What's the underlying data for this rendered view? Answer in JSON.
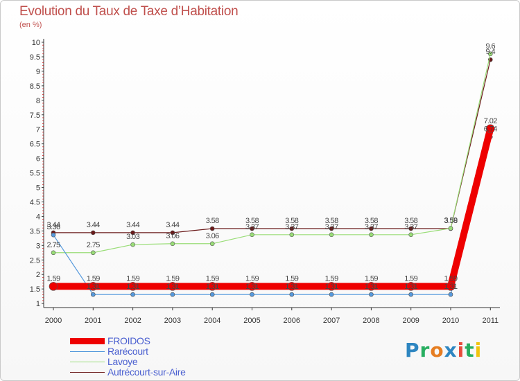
{
  "chart_data": {
    "type": "line",
    "title": "Evolution du Taux de Taxe d’Habitation",
    "subtitle": "(en %)",
    "ylim": [
      0.9,
      10
    ],
    "yticks": [
      1,
      1.5,
      2,
      2.5,
      3,
      3.5,
      4,
      4.5,
      5,
      5.5,
      6,
      6.5,
      7,
      7.5,
      8,
      8.5,
      9,
      9.5,
      10
    ],
    "ytick_labels": [
      "1",
      "1.5",
      "2",
      "2.5",
      "3",
      "3.5",
      "4",
      "4.5",
      "5",
      "5.5",
      "6",
      "6.5",
      "7",
      "7.5",
      "8",
      "8.5",
      "9",
      "9.5",
      "10"
    ],
    "categories": [
      "2000",
      "2001",
      "2002",
      "2003",
      "2004",
      "2005",
      "2006",
      "2007",
      "2008",
      "2009",
      "2010",
      "2011"
    ],
    "series": [
      {
        "name": "Autrécourt-sur-Aire",
        "color": "#6b1a1a",
        "values": [
          3.44,
          3.44,
          3.44,
          3.44,
          3.58,
          3.58,
          3.58,
          3.58,
          3.58,
          3.58,
          3.58,
          9.4
        ],
        "labels": [
          "3.44",
          "3.44",
          "3.44",
          "3.44",
          "3.58",
          "3.58",
          "3.58",
          "3.58",
          "3.58",
          "3.58",
          "3.58",
          "9.4"
        ]
      },
      {
        "name": "Lavoye",
        "color": "#99dd77",
        "values": [
          2.75,
          2.75,
          3.03,
          3.06,
          3.06,
          3.37,
          3.37,
          3.37,
          3.37,
          3.37,
          3.59,
          9.6
        ],
        "labels": [
          "2.75",
          "2.75",
          "3.03",
          "3.06",
          "3.06",
          "3.37",
          "3.37",
          "3.37",
          "3.37",
          "3.37",
          "3.59",
          "9.6"
        ]
      },
      {
        "name": "Rarécourt",
        "color": "#5599dd",
        "values": [
          3.36,
          1.31,
          1.31,
          1.31,
          1.31,
          1.31,
          1.31,
          1.31,
          1.31,
          1.31,
          1.31,
          6.74
        ],
        "labels": [
          "3.36",
          "1.31",
          "1.31",
          "1.31",
          "1.31",
          "1.31",
          "1.31",
          "1.31",
          "1.31",
          "1.31",
          "1.31",
          "6.74"
        ]
      },
      {
        "name": "FROIDOS",
        "color": "#ee0000",
        "values": [
          1.59,
          1.59,
          1.59,
          1.59,
          1.59,
          1.59,
          1.59,
          1.59,
          1.59,
          1.59,
          1.59,
          7.02
        ],
        "labels": [
          "1.59",
          "1.59",
          "1.59",
          "1.59",
          "1.59",
          "1.59",
          "1.59",
          "1.59",
          "1.59",
          "1.59",
          "1.59",
          "7.02"
        ]
      }
    ],
    "legend": [
      {
        "name": "FROIDOS",
        "color": "#ee0000"
      },
      {
        "name": "Rarécourt",
        "color": "#5599dd"
      },
      {
        "name": "Lavoye",
        "color": "#99dd77"
      },
      {
        "name": "Autrécourt-sur-Aire",
        "color": "#6b1a1a"
      }
    ],
    "legend_position": "bottom-left",
    "grid": false
  },
  "logo": {
    "letters": [
      "P",
      "r",
      "o",
      "x",
      "i",
      "t",
      "i"
    ],
    "colors": [
      "#2e86c1",
      "#27ae60",
      "#e67e22",
      "#2e86c1",
      "#e74c3c",
      "#27ae60",
      "#f1c40f"
    ]
  }
}
